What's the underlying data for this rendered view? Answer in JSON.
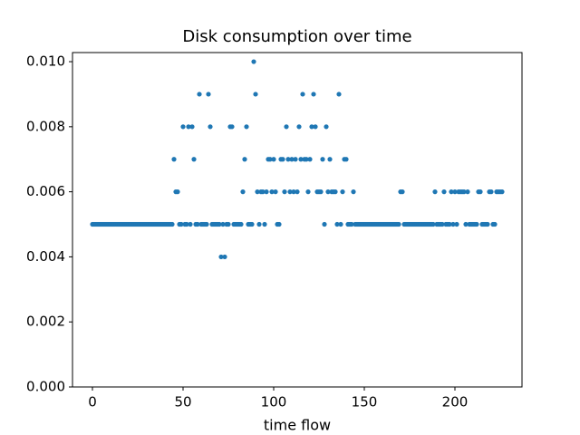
{
  "chart_data": {
    "type": "scatter",
    "title": "Disk consumption over time",
    "x_label": "time flow",
    "color": "#1f77b4",
    "x": [
      0,
      1,
      2,
      3,
      4,
      5,
      6,
      7,
      8,
      9,
      10,
      11,
      12,
      13,
      14,
      15,
      16,
      17,
      18,
      19,
      20,
      21,
      22,
      23,
      24,
      25,
      26,
      27,
      28,
      29,
      30,
      31,
      32,
      33,
      34,
      35,
      36,
      37,
      38,
      39,
      40,
      41,
      42,
      43,
      44,
      45,
      46,
      47,
      48,
      49,
      50,
      51,
      52,
      53,
      54,
      55,
      56,
      57,
      58,
      59,
      60,
      61,
      62,
      63,
      64,
      65,
      66,
      67,
      68,
      69,
      70,
      71,
      72,
      73,
      74,
      75,
      76,
      77,
      78,
      79,
      80,
      81,
      82,
      83,
      84,
      85,
      86,
      87,
      88,
      89,
      90,
      91,
      92,
      93,
      94,
      95,
      96,
      97,
      98,
      99,
      100,
      101,
      102,
      103,
      104,
      105,
      106,
      107,
      108,
      109,
      110,
      111,
      112,
      113,
      114,
      115,
      116,
      117,
      118,
      119,
      120,
      121,
      122,
      123,
      124,
      125,
      126,
      127,
      128,
      129,
      130,
      131,
      132,
      133,
      134,
      135,
      136,
      137,
      138,
      139,
      140,
      141,
      142,
      143,
      144,
      145,
      146,
      147,
      148,
      149,
      150,
      151,
      152,
      153,
      154,
      155,
      156,
      157,
      158,
      159,
      160,
      161,
      162,
      163,
      164,
      165,
      166,
      167,
      168,
      169,
      170,
      171,
      172,
      173,
      174,
      175,
      176,
      177,
      178,
      179,
      180,
      181,
      182,
      183,
      184,
      185,
      186,
      187,
      188,
      189,
      190,
      191,
      192,
      193,
      194,
      195,
      196,
      197,
      198,
      199,
      200,
      201,
      202,
      203,
      204,
      205,
      206,
      207,
      208,
      209,
      210,
      211,
      212,
      213,
      214,
      215,
      216,
      217,
      218,
      219,
      220,
      221,
      222,
      223,
      224,
      225,
      226
    ],
    "values": [
      0.005,
      0.005,
      0.005,
      0.005,
      0.005,
      0.005,
      0.005,
      0.005,
      0.005,
      0.005,
      0.005,
      0.005,
      0.005,
      0.005,
      0.005,
      0.005,
      0.005,
      0.005,
      0.005,
      0.005,
      0.005,
      0.005,
      0.005,
      0.005,
      0.005,
      0.005,
      0.005,
      0.005,
      0.005,
      0.005,
      0.005,
      0.005,
      0.005,
      0.005,
      0.005,
      0.005,
      0.005,
      0.005,
      0.005,
      0.005,
      0.005,
      0.005,
      0.005,
      0.005,
      0.005,
      0.007,
      0.006,
      0.006,
      0.005,
      0.005,
      0.008,
      0.005,
      0.005,
      0.008,
      0.005,
      0.008,
      0.007,
      0.005,
      0.005,
      0.009,
      0.005,
      0.005,
      0.005,
      0.005,
      0.009,
      0.008,
      0.005,
      0.005,
      0.005,
      0.005,
      0.005,
      0.004,
      0.005,
      0.004,
      0.005,
      0.005,
      0.008,
      0.008,
      0.005,
      0.005,
      0.005,
      0.005,
      0.005,
      0.006,
      0.007,
      0.008,
      0.005,
      0.005,
      0.005,
      0.01,
      0.009,
      0.006,
      0.005,
      0.006,
      0.006,
      0.005,
      0.006,
      0.007,
      0.007,
      0.006,
      0.007,
      0.006,
      0.005,
      0.005,
      0.007,
      0.007,
      0.006,
      0.008,
      0.007,
      0.006,
      0.007,
      0.006,
      0.007,
      0.006,
      0.008,
      0.007,
      0.009,
      0.007,
      0.007,
      0.006,
      0.007,
      0.008,
      0.009,
      0.008,
      0.006,
      0.006,
      0.006,
      0.007,
      0.005,
      0.008,
      0.006,
      0.007,
      0.006,
      0.006,
      0.006,
      0.005,
      0.009,
      0.005,
      0.006,
      0.007,
      0.007,
      0.005,
      0.005,
      0.005,
      0.006,
      0.005,
      0.005,
      0.005,
      0.005,
      0.005,
      0.005,
      0.005,
      0.005,
      0.005,
      0.005,
      0.005,
      0.005,
      0.005,
      0.005,
      0.005,
      0.005,
      0.005,
      0.005,
      0.005,
      0.005,
      0.005,
      0.005,
      0.005,
      0.005,
      0.005,
      0.006,
      0.006,
      0.005,
      0.005,
      0.005,
      0.005,
      0.005,
      0.005,
      0.005,
      0.005,
      0.005,
      0.005,
      0.005,
      0.005,
      0.005,
      0.005,
      0.005,
      0.005,
      0.005,
      0.006,
      0.005,
      0.005,
      0.005,
      0.005,
      0.006,
      0.005,
      0.005,
      0.005,
      0.006,
      0.005,
      0.006,
      0.005,
      0.006,
      0.006,
      0.006,
      0.006,
      0.005,
      0.006,
      0.005,
      0.005,
      0.005,
      0.005,
      0.005,
      0.006,
      0.006,
      0.005,
      0.005,
      0.005,
      0.005,
      0.006,
      0.006,
      0.005,
      0.005,
      0.006,
      0.006,
      0.006,
      0.006
    ],
    "xlim": [
      -11,
      237
    ],
    "ylim": [
      0,
      0.01028
    ],
    "xticks": [
      0,
      50,
      100,
      150,
      200
    ],
    "yticks": [
      {
        "value": 0,
        "label": "0.000"
      },
      {
        "value": 0.002,
        "label": "0.002"
      },
      {
        "value": 0.004,
        "label": "0.004"
      },
      {
        "value": 0.006,
        "label": "0.006"
      },
      {
        "value": 0.008,
        "label": "0.008"
      },
      {
        "value": 0.01,
        "label": "0.010"
      }
    ]
  }
}
